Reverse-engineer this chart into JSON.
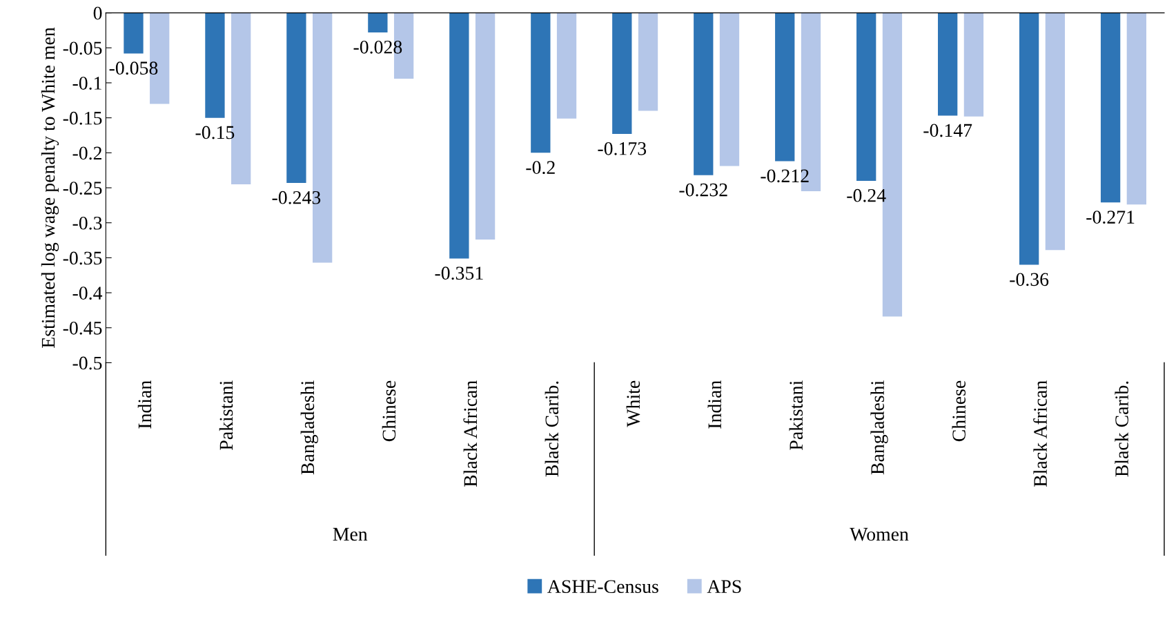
{
  "chart_data": {
    "type": "bar",
    "ylabel": "Estimated log wage penalty to White men",
    "categories": [
      "Indian",
      "Pakistani",
      "Bangladeshi",
      "Chinese",
      "Black African",
      "Black Carib.",
      "White",
      "Indian",
      "Pakistani",
      "Bangladeshi",
      "Chinese",
      "Black African",
      "Black Carib."
    ],
    "series": [
      {
        "name": "ASHE-Census",
        "color": "#2e75b6",
        "values": [
          -0.058,
          -0.15,
          -0.243,
          -0.028,
          -0.351,
          -0.2,
          -0.173,
          -0.232,
          -0.212,
          -0.24,
          -0.147,
          -0.36,
          -0.271
        ],
        "value_labels": [
          "-0.058",
          "-0.15",
          "-0.243",
          "-0.028",
          "-0.351",
          "-0.2",
          "-0.173",
          "-0.232",
          "-0.212",
          "-0.24",
          "-0.147",
          "-0.36",
          "-0.271"
        ]
      },
      {
        "name": "APS",
        "color": "#b4c6e8",
        "values": [
          -0.13,
          -0.245,
          -0.357,
          -0.094,
          -0.324,
          -0.151,
          -0.14,
          -0.219,
          -0.255,
          -0.434,
          -0.148,
          -0.339,
          -0.274
        ]
      }
    ],
    "ylim": [
      -0.5,
      0
    ],
    "yticks": [
      0,
      -0.05,
      -0.1,
      -0.15,
      -0.2,
      -0.25,
      -0.3,
      -0.35,
      -0.4,
      -0.45,
      -0.5
    ],
    "annotations": [
      "Men",
      "Women"
    ],
    "legend": "bottom",
    "grid": false
  }
}
